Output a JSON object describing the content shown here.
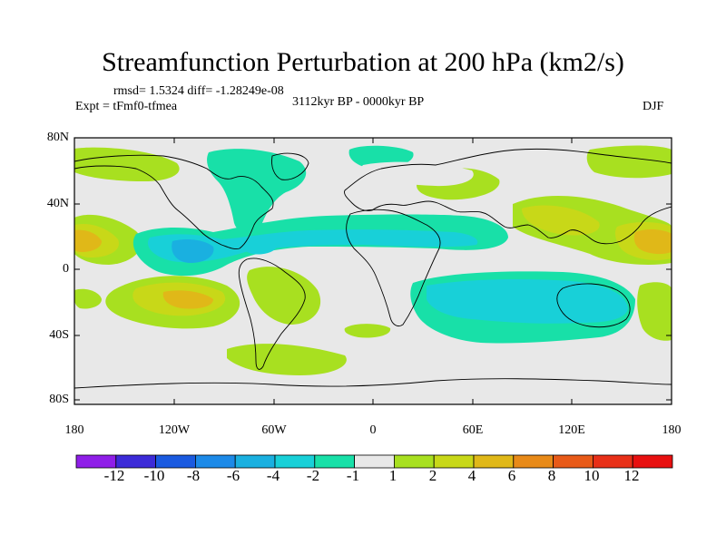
{
  "title": "Streamfunction Perturbation at 200 hPa (km2/s)",
  "stats": "rmsd= 1.5324 diff= -1.28249e-08",
  "experiment": "Expt = tFmf0-tfmea",
  "period": "3112kyr BP - 0000kyr BP",
  "season": "DJF",
  "lat_labels": [
    "80N",
    "40N",
    "0",
    "40S",
    "80S"
  ],
  "lon_labels": [
    "180",
    "120W",
    "60W",
    "0",
    "60E",
    "120E",
    "180"
  ],
  "colorbar": {
    "labels": [
      "-12",
      "-10",
      "-8",
      "-6",
      "-4",
      "-2",
      "-1",
      "1",
      "2",
      "4",
      "6",
      "8",
      "10",
      "12"
    ],
    "colors": [
      "#8f1ee8",
      "#3c2bd8",
      "#1a5ae0",
      "#1c8ae8",
      "#1ab0e0",
      "#18d0d8",
      "#18e0a8",
      "#e8e8e8",
      "#a8e020",
      "#c8d818",
      "#e0b818",
      "#e88a18",
      "#e85a18",
      "#e83018",
      "#e81010"
    ]
  },
  "legend_colors": {
    "background": "#e8e8e8",
    "pos1": "#a8e020",
    "pos2": "#c8d818",
    "pos3": "#e0b818",
    "neg1": "#18e0a8",
    "neg2": "#18d0d8",
    "neg3": "#1ab0e0"
  }
}
